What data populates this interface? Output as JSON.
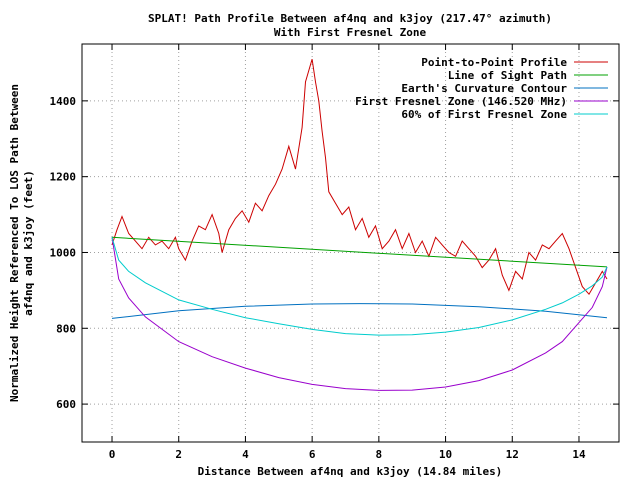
{
  "chart_data": {
    "type": "line",
    "title": "SPLAT! Path Profile Between af4nq and k3joy (217.47° azimuth)",
    "subtitle": "With First Fresnel Zone",
    "xlabel": "Distance Between af4nq and k3joy (14.84 miles)",
    "ylabel": [
      "Normalized Height Referenced To LOS Path Between",
      "af4nq and k3joy (feet)"
    ],
    "xlim": [
      -0.9,
      15.2
    ],
    "ylim": [
      500,
      1550
    ],
    "xticks": [
      0,
      2,
      4,
      6,
      8,
      10,
      12,
      14
    ],
    "yticks": [
      600,
      800,
      1000,
      1200,
      1400
    ],
    "grid": true,
    "legend_position": "top-right",
    "series": [
      {
        "name": "Point-to-Point Profile",
        "color": "#cc0000",
        "x": [
          0.0,
          0.15,
          0.3,
          0.5,
          0.7,
          0.9,
          1.1,
          1.3,
          1.5,
          1.7,
          1.9,
          2.0,
          2.2,
          2.4,
          2.6,
          2.8,
          3.0,
          3.2,
          3.3,
          3.5,
          3.7,
          3.9,
          4.1,
          4.3,
          4.5,
          4.7,
          4.9,
          5.1,
          5.3,
          5.5,
          5.7,
          5.8,
          5.9,
          6.0,
          6.1,
          6.2,
          6.3,
          6.4,
          6.5,
          6.7,
          6.9,
          7.1,
          7.3,
          7.5,
          7.7,
          7.9,
          8.1,
          8.3,
          8.5,
          8.7,
          8.9,
          9.1,
          9.3,
          9.5,
          9.7,
          9.9,
          10.1,
          10.3,
          10.5,
          10.7,
          10.9,
          11.1,
          11.3,
          11.5,
          11.7,
          11.9,
          12.1,
          12.3,
          12.5,
          12.7,
          12.9,
          13.1,
          13.3,
          13.5,
          13.7,
          13.9,
          14.1,
          14.3,
          14.5,
          14.7,
          14.84
        ],
        "y": [
          1020,
          1060,
          1095,
          1050,
          1030,
          1010,
          1040,
          1020,
          1030,
          1010,
          1040,
          1010,
          980,
          1030,
          1070,
          1060,
          1100,
          1050,
          1000,
          1060,
          1090,
          1110,
          1080,
          1130,
          1110,
          1150,
          1180,
          1220,
          1280,
          1220,
          1330,
          1450,
          1480,
          1510,
          1450,
          1400,
          1320,
          1250,
          1160,
          1130,
          1100,
          1120,
          1060,
          1090,
          1040,
          1070,
          1010,
          1030,
          1060,
          1010,
          1050,
          1000,
          1030,
          990,
          1040,
          1020,
          1000,
          990,
          1030,
          1010,
          990,
          960,
          980,
          1010,
          940,
          900,
          950,
          930,
          1000,
          980,
          1020,
          1010,
          1030,
          1050,
          1010,
          960,
          910,
          890,
          920,
          950,
          930
        ]
      },
      {
        "name": "Line of Sight Path",
        "color": "#00a000",
        "x": [
          0.0,
          14.84
        ],
        "y": [
          1040,
          962
        ]
      },
      {
        "name": "Earth's Curvature Contour",
        "color": "#0070c0",
        "x": [
          0.0,
          2.0,
          4.0,
          6.0,
          7.42,
          9.0,
          11.0,
          13.0,
          14.84
        ],
        "y": [
          826,
          846,
          858,
          864,
          865,
          864,
          857,
          845,
          828
        ]
      },
      {
        "name": "First Fresnel Zone (146.520 MHz)",
        "color": "#9900cc",
        "x": [
          0.0,
          0.2,
          0.5,
          1.0,
          2.0,
          3.0,
          4.0,
          5.0,
          6.0,
          7.0,
          8.0,
          9.0,
          10.0,
          11.0,
          12.0,
          13.0,
          13.5,
          14.0,
          14.4,
          14.7,
          14.84
        ],
        "y": [
          1040,
          930,
          880,
          830,
          765,
          725,
          695,
          670,
          652,
          641,
          636,
          637,
          645,
          662,
          690,
          735,
          765,
          815,
          855,
          910,
          962
        ]
      },
      {
        "name": "60% of First Fresnel Zone",
        "color": "#00cccc",
        "x": [
          0.0,
          0.2,
          0.5,
          1.0,
          2.0,
          3.0,
          4.0,
          5.0,
          6.0,
          7.0,
          8.0,
          9.0,
          10.0,
          11.0,
          12.0,
          13.0,
          13.5,
          14.0,
          14.4,
          14.7,
          14.84
        ],
        "y": [
          1040,
          980,
          950,
          920,
          875,
          850,
          828,
          812,
          797,
          786,
          782,
          783,
          790,
          802,
          822,
          850,
          867,
          890,
          912,
          935,
          962
        ]
      }
    ]
  }
}
